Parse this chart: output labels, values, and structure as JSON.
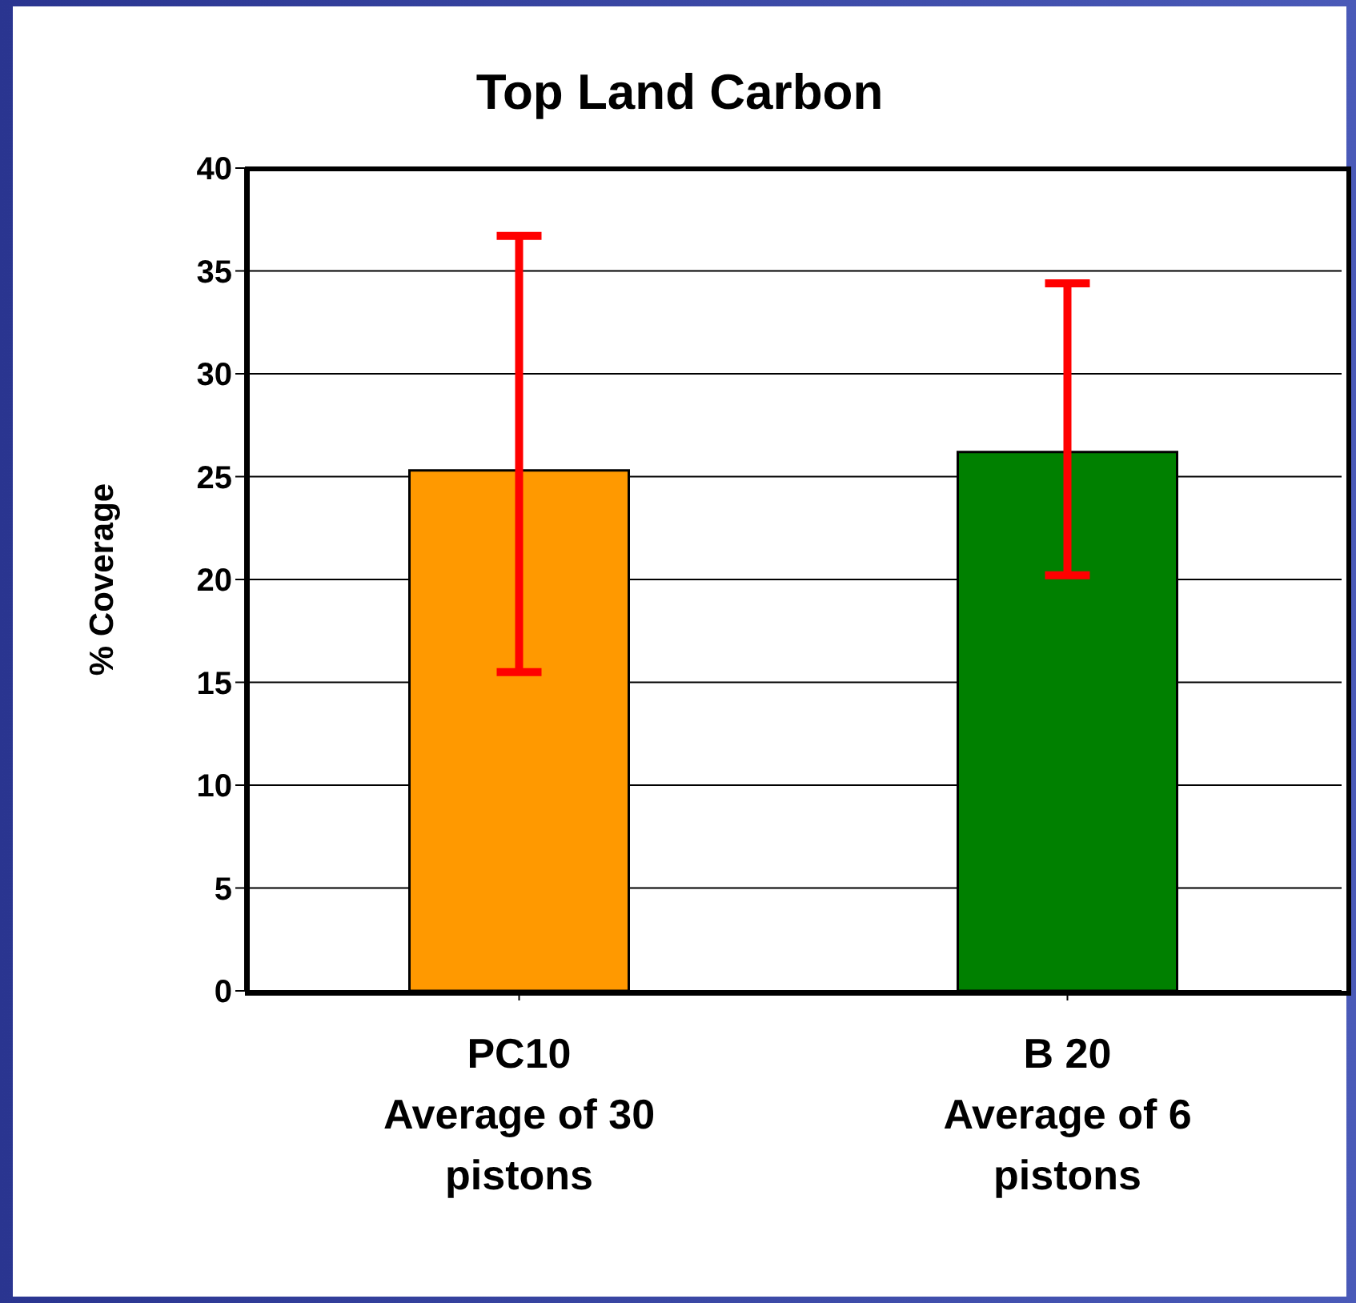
{
  "chart_data": {
    "type": "bar",
    "title": "Top Land Carbon",
    "ylabel": "% Coverage",
    "categories": [
      "PC10\nAverage of 30\npistons",
      "B 20\nAverage of 6\npistons"
    ],
    "values": [
      25.3,
      26.2
    ],
    "colors": [
      "#ff9900",
      "#008000"
    ],
    "errors": [
      [
        15.5,
        36.7
      ],
      [
        20.2,
        34.4
      ]
    ],
    "ylim": [
      0,
      40
    ],
    "yticks": [
      0,
      5,
      10,
      15,
      20,
      25,
      30,
      35,
      40
    ],
    "grid": "y"
  }
}
